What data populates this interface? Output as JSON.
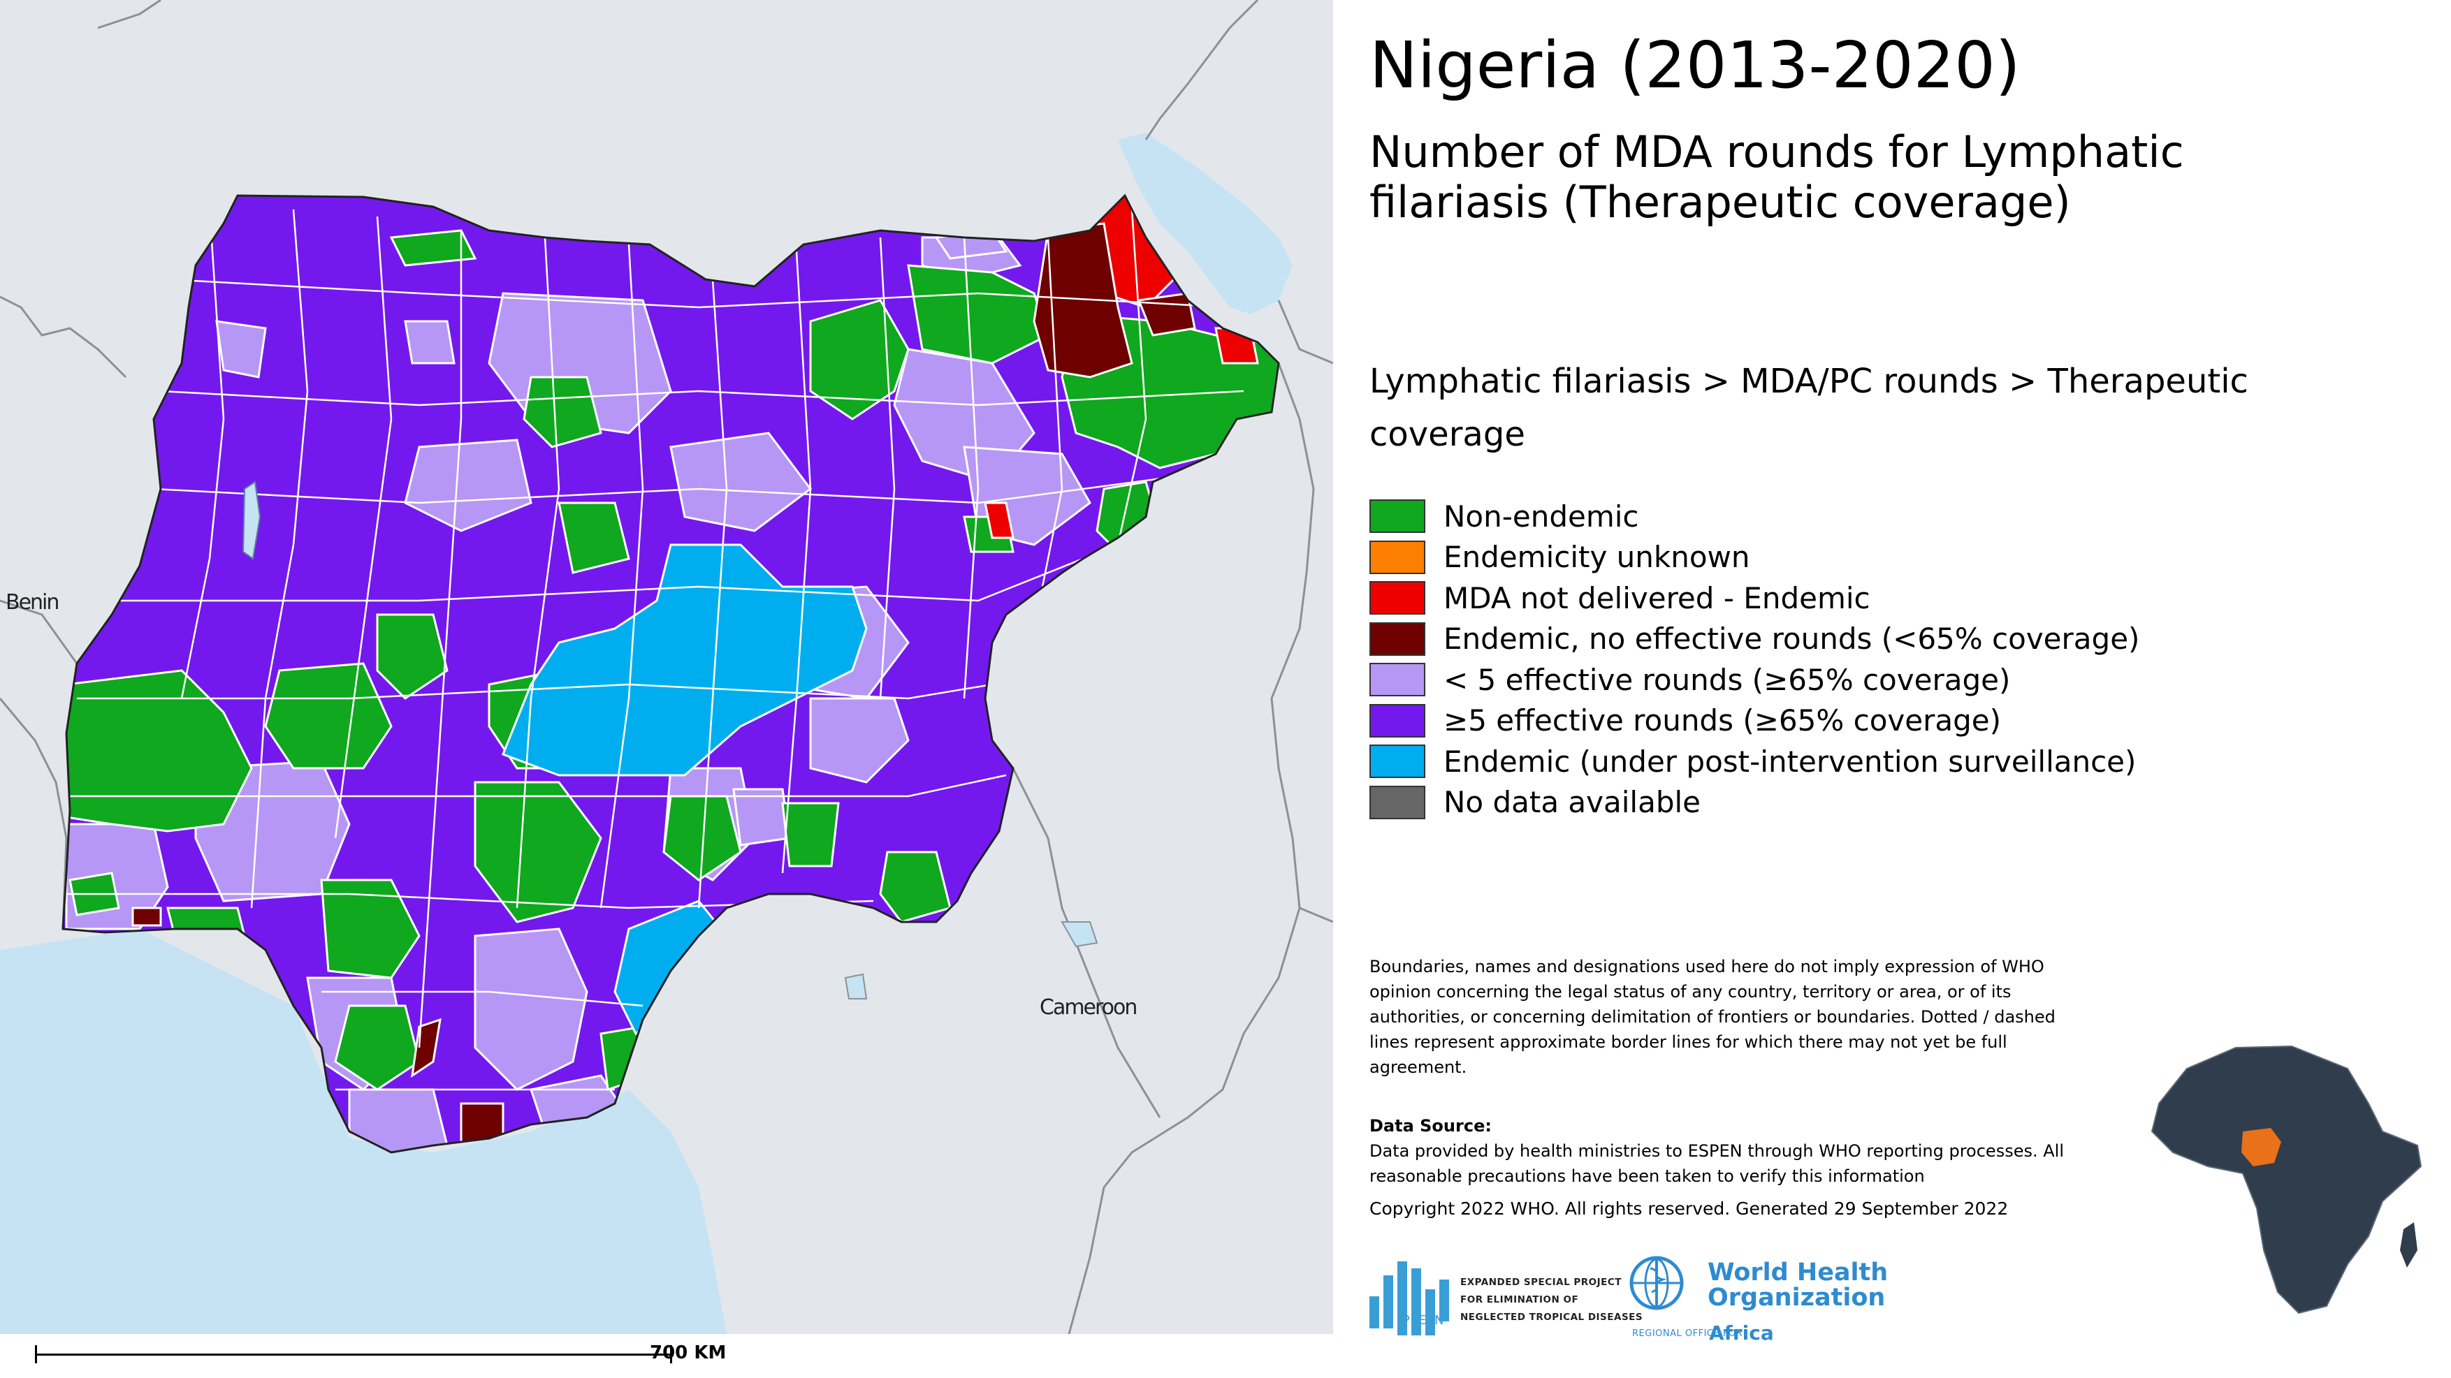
{
  "title": "Nigeria (2013-2020)",
  "subtitle": "Number of MDA rounds for Lymphatic filariasis (Therapeutic coverage)",
  "breadcrumb": "Lymphatic filariasis > MDA/PC rounds > Therapeutic coverage",
  "legend": [
    {
      "label": "Non-endemic",
      "color": "#0fa81e"
    },
    {
      "label": "Endemicity unknown",
      "color": "#ff8000"
    },
    {
      "label": "MDA not delivered - Endemic",
      "color": "#ee0000"
    },
    {
      "label": "Endemic, no effective rounds (<65% coverage)",
      "color": "#6e0000"
    },
    {
      "label": "< 5 effective rounds (≥65% coverage)",
      "color": "#b797f5"
    },
    {
      "label": "≥5 effective rounds (≥65% coverage)",
      "color": "#7319ee"
    },
    {
      "label": "Endemic (under post-intervention surveillance)",
      "color": "#00aeef"
    },
    {
      "label": "No data available",
      "color": "#666666"
    }
  ],
  "map": {
    "neighbors": {
      "benin": "Benin",
      "cameroon": "Cameroon"
    },
    "scale_label": "700 KM",
    "colors": {
      "land": "#e3e7eb",
      "water": "#c6e3f3",
      "border": "#8c9198",
      "inset_africa": "#2f3d4c",
      "inset_highlight": "#e8711a"
    }
  },
  "disclaimer": "Boundaries, names and designations used here do not imply expression of WHO opinion concerning the legal status of any country, territory or area, or of its authorities, or concerning delimitation of frontiers or boundaries. Dotted / dashed lines represent approximate border lines for which there may not yet be full agreement.",
  "data_source": {
    "heading": "Data Source:",
    "text": "Data provided by health ministries to ESPEN through WHO reporting processes. All reasonable precautions have been taken to verify this information"
  },
  "copyright": "Copyright 2022 WHO. All rights reserved. Generated 29 September 2022",
  "logos": {
    "espen_lines": [
      "EXPANDED SPECIAL PROJECT",
      "FOR ELIMINATION OF",
      "NEGLECTED TROPICAL DISEASES"
    ],
    "espen_word": "ESPEN",
    "who_line1": "World Health",
    "who_line2": "Organization",
    "who_region_small": "REGIONAL OFFICE FOR",
    "who_region": "Africa"
  }
}
